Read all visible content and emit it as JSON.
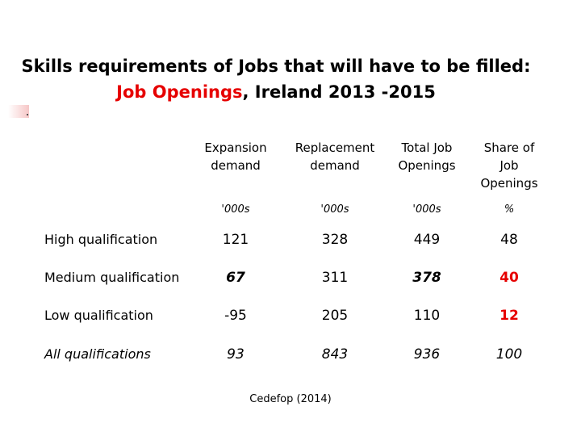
{
  "title": {
    "line1": "Skills requirements of Jobs that will have to be filled:",
    "line2_red": "Job Openings",
    "line2_rest": ", Ireland 2013 -2015"
  },
  "table": {
    "headers": [
      {
        "line1": "Expansion",
        "line2": "demand",
        "line3": ""
      },
      {
        "line1": "Replacement",
        "line2": "demand",
        "line3": ""
      },
      {
        "line1": "Total Job",
        "line2": "Openings",
        "line3": ""
      },
      {
        "line1": "Share of",
        "line2": "Job",
        "line3": "Openings"
      }
    ],
    "units": [
      "'000s",
      "'000s",
      "'000s",
      "%"
    ],
    "rows": [
      {
        "label": "High qualification",
        "values": [
          "121",
          "328",
          "449",
          "48"
        ]
      },
      {
        "label": "Medium qualification",
        "values": [
          "67",
          "311",
          "378",
          "40"
        ]
      },
      {
        "label": "Low qualification",
        "values": [
          "-95",
          "205",
          "110",
          "12"
        ]
      },
      {
        "label": "All qualifications",
        "values": [
          "93",
          "843",
          "936",
          "100"
        ]
      }
    ]
  },
  "source": "Cedefop (2014)",
  "colors": {
    "accent_red": "#e60000",
    "text": "#000000",
    "background": "#ffffff"
  }
}
